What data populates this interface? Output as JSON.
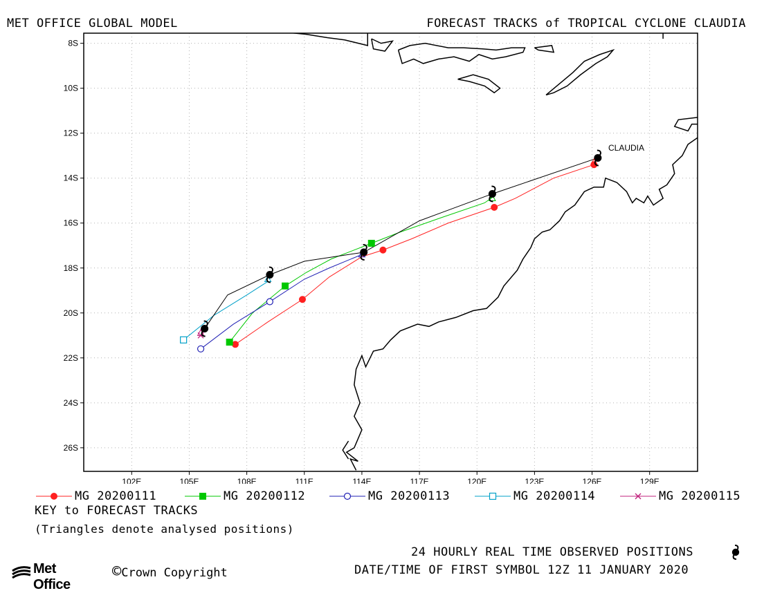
{
  "header": {
    "left_title": "MET OFFICE GLOBAL MODEL",
    "right_title": "FORECAST TRACKS of TROPICAL CYCLONE CLAUDIA"
  },
  "colors": {
    "mg20200111": "#ff2020",
    "mg20200112": "#00c800",
    "mg20200113": "#1f1fb4",
    "mg20200114": "#00a0c8",
    "mg20200115": "#c0207c",
    "observed": "#000000",
    "grid": "#b0b0b0"
  },
  "chart_data": {
    "type": "line",
    "title": "FORECAST TRACKS of TROPICAL CYCLONE CLAUDIA",
    "xlabel": "",
    "ylabel": "",
    "xlim": [
      99.5,
      131.5
    ],
    "ylim": [
      -27.05,
      -7.55
    ],
    "xticks": [
      102,
      105,
      108,
      111,
      114,
      117,
      120,
      123,
      126,
      129
    ],
    "xtick_labels": [
      "102E",
      "105E",
      "108E",
      "111E",
      "114E",
      "117E",
      "120E",
      "123E",
      "126E",
      "129E"
    ],
    "yticks": [
      -8,
      -10,
      -12,
      -14,
      -16,
      -18,
      -20,
      -22,
      -24,
      -26
    ],
    "ytick_labels": [
      "8S",
      "10S",
      "12S",
      "14S",
      "16S",
      "18S",
      "20S",
      "22S",
      "24S",
      "26S"
    ],
    "grid": true,
    "storm_label": "CLAUDIA",
    "observed": {
      "name": "24 HOURLY REAL TIME OBSERVED POSITIONS",
      "points": [
        [
          126.3,
          -13.1
        ],
        [
          120.8,
          -14.7
        ],
        [
          114.1,
          -17.3
        ],
        [
          109.2,
          -18.3
        ],
        [
          105.8,
          -20.7
        ]
      ],
      "path": [
        [
          126.3,
          -13.1
        ],
        [
          120.8,
          -14.7
        ],
        [
          117.0,
          -15.9
        ],
        [
          114.1,
          -17.3
        ],
        [
          111.0,
          -17.7
        ],
        [
          109.2,
          -18.3
        ],
        [
          107.0,
          -19.2
        ],
        [
          105.8,
          -20.7
        ]
      ]
    },
    "series": [
      {
        "name": "MG 20200111",
        "marker": "filled-circle",
        "points": [
          [
            126.1,
            -13.4
          ],
          [
            120.9,
            -15.3
          ],
          [
            115.1,
            -17.2
          ],
          [
            110.9,
            -19.4
          ],
          [
            107.4,
            -21.4
          ]
        ],
        "path": [
          [
            126.1,
            -13.4
          ],
          [
            124.0,
            -14.0
          ],
          [
            122.0,
            -14.9
          ],
          [
            120.9,
            -15.3
          ],
          [
            118.5,
            -16.0
          ],
          [
            116.6,
            -16.7
          ],
          [
            115.1,
            -17.2
          ],
          [
            114.0,
            -17.5
          ],
          [
            112.3,
            -18.4
          ],
          [
            110.9,
            -19.4
          ],
          [
            109.1,
            -20.4
          ],
          [
            107.4,
            -21.4
          ]
        ]
      },
      {
        "name": "MG 20200112",
        "marker": "filled-square",
        "points": [
          [
            114.5,
            -16.9
          ],
          [
            110.0,
            -18.8
          ],
          [
            107.1,
            -21.3
          ]
        ],
        "path": [
          [
            120.9,
            -14.8
          ],
          [
            120.4,
            -15.1
          ],
          [
            118.0,
            -15.8
          ],
          [
            116.0,
            -16.4
          ],
          [
            114.5,
            -16.9
          ],
          [
            112.4,
            -17.6
          ],
          [
            111.1,
            -18.2
          ],
          [
            110.0,
            -18.8
          ],
          [
            108.3,
            -20.0
          ],
          [
            107.1,
            -21.3
          ]
        ]
      },
      {
        "name": "MG 20200113",
        "marker": "open-circle",
        "points": [
          [
            109.2,
            -19.5
          ],
          [
            105.6,
            -21.6
          ]
        ],
        "path": [
          [
            114.0,
            -17.4
          ],
          [
            112.3,
            -18.0
          ],
          [
            111.0,
            -18.5
          ],
          [
            109.2,
            -19.5
          ],
          [
            107.3,
            -20.5
          ],
          [
            105.6,
            -21.6
          ]
        ]
      },
      {
        "name": "MG 20200114",
        "marker": "open-square",
        "points": [
          [
            104.7,
            -21.2
          ]
        ],
        "path": [
          [
            109.1,
            -18.6
          ],
          [
            108.0,
            -19.2
          ],
          [
            106.3,
            -20.1
          ],
          [
            104.7,
            -21.2
          ]
        ]
      },
      {
        "name": "MG 20200115",
        "marker": "x-cross",
        "points": [
          [
            105.6,
            -21.0
          ]
        ],
        "path": [
          [
            105.8,
            -20.7
          ],
          [
            105.6,
            -21.0
          ]
        ]
      }
    ],
    "analysed_triangles": [
      [
        126.1,
        -13.3
      ],
      [
        120.8,
        -14.9
      ],
      [
        114.0,
        -17.4
      ],
      [
        109.1,
        -18.5
      ],
      [
        105.6,
        -20.9
      ]
    ],
    "coastlines": [
      [
        [
          115.7,
          -7.45
        ],
        [
          114.3,
          -7.45
        ],
        [
          114.3,
          -8.1
        ],
        [
          113.1,
          -7.85
        ],
        [
          112.2,
          -7.75
        ],
        [
          111.1,
          -7.6
        ],
        [
          109.3,
          -7.45
        ]
      ],
      [
        [
          114.5,
          -7.8
        ],
        [
          115.0,
          -8.0
        ],
        [
          115.6,
          -7.9
        ],
        [
          115.2,
          -8.35
        ],
        [
          114.6,
          -8.25
        ],
        [
          114.5,
          -7.8
        ]
      ],
      [
        [
          115.9,
          -8.3
        ],
        [
          116.5,
          -8.1
        ],
        [
          117.3,
          -8.0
        ],
        [
          118.5,
          -8.2
        ],
        [
          119.3,
          -8.2
        ],
        [
          120.3,
          -8.25
        ],
        [
          121.0,
          -8.3
        ],
        [
          121.8,
          -8.2
        ],
        [
          122.5,
          -8.2
        ],
        [
          122.4,
          -8.4
        ],
        [
          121.5,
          -8.6
        ],
        [
          120.8,
          -8.7
        ],
        [
          120.1,
          -8.5
        ],
        [
          119.6,
          -8.8
        ],
        [
          118.8,
          -8.6
        ],
        [
          118.0,
          -8.7
        ],
        [
          117.2,
          -8.9
        ],
        [
          116.7,
          -8.7
        ],
        [
          116.1,
          -8.9
        ],
        [
          115.9,
          -8.3
        ]
      ],
      [
        [
          123.0,
          -8.2
        ],
        [
          123.9,
          -8.1
        ],
        [
          124.0,
          -8.4
        ],
        [
          123.2,
          -8.3
        ],
        [
          123.0,
          -8.2
        ]
      ],
      [
        [
          119.0,
          -9.6
        ],
        [
          119.8,
          -9.4
        ],
        [
          120.6,
          -9.6
        ],
        [
          121.2,
          -10.0
        ],
        [
          120.9,
          -10.2
        ],
        [
          120.4,
          -9.9
        ],
        [
          119.6,
          -9.7
        ],
        [
          119.0,
          -9.6
        ]
      ],
      [
        [
          123.6,
          -10.3
        ],
        [
          124.3,
          -9.8
        ],
        [
          125.0,
          -9.3
        ],
        [
          125.6,
          -8.8
        ],
        [
          126.4,
          -8.5
        ],
        [
          127.1,
          -8.3
        ],
        [
          126.8,
          -8.6
        ],
        [
          126.2,
          -8.9
        ],
        [
          125.4,
          -9.4
        ],
        [
          124.7,
          -9.9
        ],
        [
          124.0,
          -10.2
        ],
        [
          123.6,
          -10.3
        ]
      ],
      [
        [
          129.7,
          -7.45
        ],
        [
          129.7,
          -7.8
        ]
      ],
      [
        [
          131.5,
          -12.2
        ],
        [
          131.0,
          -12.5
        ],
        [
          130.7,
          -13.0
        ],
        [
          130.2,
          -13.4
        ],
        [
          130.3,
          -13.8
        ],
        [
          129.9,
          -14.3
        ],
        [
          129.5,
          -14.5
        ],
        [
          129.7,
          -14.9
        ],
        [
          129.2,
          -15.2
        ],
        [
          128.9,
          -14.8
        ],
        [
          128.7,
          -15.1
        ],
        [
          128.3,
          -14.9
        ],
        [
          128.1,
          -15.1
        ],
        [
          127.8,
          -14.6
        ],
        [
          127.3,
          -14.2
        ],
        [
          126.7,
          -14.0
        ],
        [
          126.6,
          -14.4
        ],
        [
          126.1,
          -14.4
        ],
        [
          125.6,
          -14.6
        ],
        [
          125.1,
          -15.2
        ],
        [
          124.6,
          -15.5
        ],
        [
          124.3,
          -15.9
        ],
        [
          123.8,
          -16.3
        ],
        [
          123.4,
          -16.4
        ],
        [
          123.0,
          -16.7
        ],
        [
          122.8,
          -17.1
        ],
        [
          122.4,
          -17.6
        ],
        [
          122.1,
          -18.1
        ],
        [
          121.4,
          -18.8
        ],
        [
          121.1,
          -19.3
        ],
        [
          120.5,
          -19.8
        ],
        [
          119.8,
          -19.9
        ],
        [
          118.9,
          -20.2
        ],
        [
          118.0,
          -20.4
        ],
        [
          117.5,
          -20.6
        ],
        [
          116.9,
          -20.5
        ],
        [
          116.0,
          -20.8
        ],
        [
          115.5,
          -21.2
        ],
        [
          115.1,
          -21.6
        ],
        [
          114.6,
          -21.7
        ],
        [
          114.2,
          -22.4
        ],
        [
          114.0,
          -21.9
        ],
        [
          113.7,
          -22.5
        ],
        [
          113.6,
          -23.2
        ],
        [
          113.9,
          -24.0
        ],
        [
          113.6,
          -24.6
        ],
        [
          114.0,
          -25.2
        ],
        [
          113.6,
          -26.0
        ],
        [
          113.2,
          -26.2
        ],
        [
          113.8,
          -26.6
        ],
        [
          113.4,
          -26.5
        ],
        [
          113.7,
          -27.0
        ]
      ],
      [
        [
          113.3,
          -25.7
        ],
        [
          113.0,
          -26.1
        ],
        [
          113.3,
          -26.5
        ]
      ],
      [
        [
          131.5,
          -11.3
        ],
        [
          130.5,
          -11.4
        ],
        [
          130.3,
          -11.7
        ],
        [
          131.0,
          -11.9
        ],
        [
          131.2,
          -11.6
        ],
        [
          131.5,
          -11.6
        ]
      ]
    ]
  },
  "legend": {
    "items": [
      {
        "label": "MG 20200111"
      },
      {
        "label": "MG 20200112"
      },
      {
        "label": "MG 20200113"
      },
      {
        "label": "MG 20200114"
      },
      {
        "label": "MG 20200115"
      }
    ],
    "key_title": "KEY to FORECAST TRACKS",
    "key_note": "(Triangles denote analysed positions)"
  },
  "footer": {
    "logo_text": "Met Office",
    "copyright_symbol": "©",
    "copyright": "Crown Copyright",
    "observed_label": "24 HOURLY REAL TIME OBSERVED POSITIONS",
    "datetime_label": "DATE/TIME OF FIRST SYMBOL 12Z 11 JANUARY 2020"
  }
}
